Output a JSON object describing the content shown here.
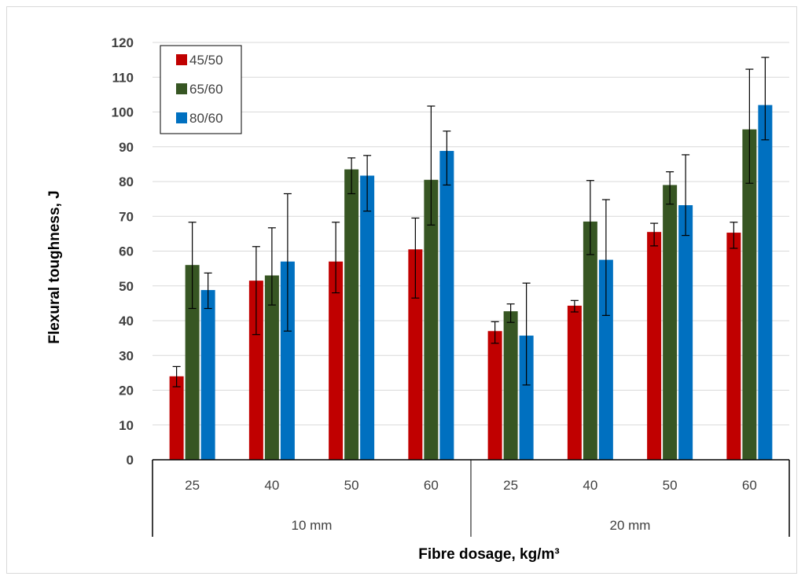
{
  "chart_data": {
    "type": "bar",
    "title": "",
    "xlabel": "Fibre dosage, kg/m³",
    "ylabel": "Flexural toughness, J",
    "ylim": [
      0,
      120
    ],
    "yticks": [
      0,
      10,
      20,
      30,
      40,
      50,
      60,
      70,
      80,
      90,
      100,
      110,
      120
    ],
    "grid": true,
    "legend_position": "top-left",
    "categories": [
      "25",
      "40",
      "50",
      "60",
      "25",
      "40",
      "50",
      "60"
    ],
    "groups": [
      {
        "label": "10 mm",
        "categories": [
          "25",
          "40",
          "50",
          "60"
        ]
      },
      {
        "label": "20 mm",
        "categories": [
          "25",
          "40",
          "50",
          "60"
        ]
      }
    ],
    "series": [
      {
        "name": "45/50",
        "color": "#c00000",
        "values": [
          24,
          51.5,
          57,
          60.5,
          37,
          44.3,
          65.5,
          65.3
        ],
        "error_low": [
          21,
          36,
          48,
          46.5,
          33.5,
          42.5,
          61.5,
          60.8
        ],
        "error_high": [
          26.8,
          61.3,
          68.3,
          69.5,
          39.7,
          45.8,
          68,
          68.3
        ]
      },
      {
        "name": "65/60",
        "color": "#375623",
        "values": [
          56,
          53,
          83.5,
          80.5,
          42.7,
          68.5,
          79,
          95
        ],
        "error_low": [
          43.5,
          44.5,
          76.5,
          67.5,
          39.5,
          59,
          73.5,
          79.5
        ],
        "error_high": [
          68.3,
          66.7,
          86.8,
          101.7,
          44.8,
          80.3,
          82.8,
          112.3
        ]
      },
      {
        "name": "80/60",
        "color": "#0070c0",
        "values": [
          48.8,
          57,
          81.7,
          88.8,
          35.7,
          57.5,
          73.2,
          102
        ],
        "error_low": [
          43.5,
          37,
          71.5,
          79,
          21.5,
          41.5,
          64.5,
          92
        ],
        "error_high": [
          53.7,
          76.5,
          87.5,
          94.5,
          50.8,
          74.8,
          87.7,
          115.7
        ]
      }
    ]
  }
}
